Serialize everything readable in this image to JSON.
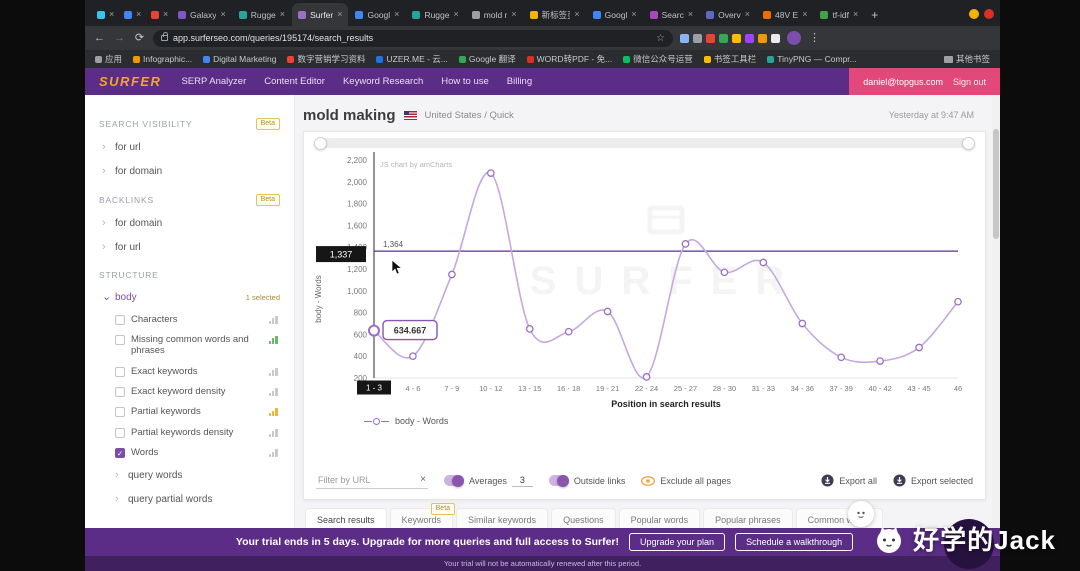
{
  "glyphs": {
    "close": "×",
    "new_tab": "+",
    "back": "←",
    "forward": "→",
    "reload": "⟳",
    "star": "☆",
    "menu": "⋮",
    "chevron_right": "›",
    "chevron_down": "⌄",
    "check": "✓",
    "clear": "×"
  },
  "browser": {
    "tabs": [
      {
        "label": "",
        "icon": "slack-icon",
        "color": "#36c5f0"
      },
      {
        "label": "",
        "icon": "workspace-icon",
        "color": "#4285f4"
      },
      {
        "label": "",
        "icon": "mail-icon",
        "color": "#ea4335"
      },
      {
        "label": "Galaxy",
        "color": "#7e57c2"
      },
      {
        "label": "Rugge",
        "color": "#26a69a"
      },
      {
        "label": "Surfer",
        "color": "#9c6fc4",
        "active": true
      },
      {
        "label": "Googl",
        "color": "#4285f4"
      },
      {
        "label": "Rugge",
        "color": "#26a69a"
      },
      {
        "label": "mold r",
        "color": "#9e9e9e"
      },
      {
        "label": "新标签页",
        "color": "#f4b400"
      },
      {
        "label": "Googl",
        "color": "#4285f4"
      },
      {
        "label": "Searc",
        "color": "#ab47bc"
      },
      {
        "label": "Overv",
        "color": "#5c6bc0"
      },
      {
        "label": "48V E",
        "color": "#ef6c00"
      },
      {
        "label": "tf-idf",
        "color": "#43a047"
      }
    ],
    "url": "app.surferseo.com/queries/195174/search_results",
    "extension_colors": [
      "#8ab4f8",
      "#9aa0a6",
      "#ea4335",
      "#34a853",
      "#fbbc04",
      "#a142f4",
      "#f29900",
      "#e8eaed"
    ],
    "window_dots": [
      "#f4b400",
      "#d93025"
    ],
    "bookmarks": [
      {
        "label": "应用",
        "color": "#9aa0a6"
      },
      {
        "label": "Infographic...",
        "color": "#f29900"
      },
      {
        "label": "Digital Marketing",
        "color": "#4285f4"
      },
      {
        "label": "数字营销学习资料",
        "color": "#ea4335"
      },
      {
        "label": "UZER.ME - 云...",
        "color": "#1a73e8"
      },
      {
        "label": "Google 翻译",
        "color": "#34a853"
      },
      {
        "label": "WORD转PDF - 免...",
        "color": "#d93025"
      },
      {
        "label": "微信公众号运营",
        "color": "#07c160"
      },
      {
        "label": "书签工具栏",
        "color": "#fbbc04"
      },
      {
        "label": "TinyPNG — Compr...",
        "color": "#26a69a"
      }
    ],
    "other_bookmarks": "其他书签"
  },
  "app_header": {
    "logo": "SURFER",
    "nav": [
      "SERP Analyzer",
      "Content Editor",
      "Keyword Research",
      "How to use",
      "Billing"
    ],
    "account_email": "daniel@topgus.com",
    "sign_out_label": "Sign out"
  },
  "sidebar": {
    "search_visibility": {
      "title": "SEARCH VISIBILITY",
      "beta": "Beta",
      "items": [
        "for url",
        "for domain"
      ]
    },
    "backlinks": {
      "title": "BACKLINKS",
      "beta": "Beta",
      "items": [
        "for domain",
        "for url"
      ]
    },
    "structure_title": "STRUCTURE",
    "body_group": {
      "label": "body",
      "selected_note": "1 selected"
    },
    "metrics": [
      {
        "label": "Characters",
        "checked": false,
        "spark": "#c9c9c9"
      },
      {
        "label": "Missing common words and phrases",
        "checked": false,
        "spark": "#66bb6a"
      },
      {
        "label": "Exact keywords",
        "checked": false,
        "spark": "#c9c9c9"
      },
      {
        "label": "Exact keyword density",
        "checked": false,
        "spark": "#c9c9c9"
      },
      {
        "label": "Partial keywords",
        "checked": false,
        "spark": "#f2b339"
      },
      {
        "label": "Partial keywords density",
        "checked": false,
        "spark": "#c9c9c9"
      },
      {
        "label": "Words",
        "checked": true,
        "spark": "#c9c9c9"
      }
    ],
    "subgroups": [
      "query words",
      "query partial words"
    ]
  },
  "main": {
    "title": "mold making",
    "scope": "United States / Quick",
    "timestamp": "Yesterday at 9:47 AM",
    "chart_credit": "JS chart by amCharts",
    "legend": "body - Words",
    "chart_watermark": "SURFER",
    "controls": {
      "filter_placeholder": "Filter by URL",
      "averages_label": "Averages",
      "averages_value": "3",
      "outside_links_label": "Outside links",
      "exclude_label": "Exclude all pages",
      "export_all_label": "Export all",
      "export_selected_label": "Export selected"
    },
    "tabs": [
      {
        "label": "Search results",
        "active": true
      },
      {
        "label": "Keywords",
        "beta": "Beta"
      },
      {
        "label": "Similar keywords"
      },
      {
        "label": "Questions"
      },
      {
        "label": "Popular words"
      },
      {
        "label": "Popular phrases"
      },
      {
        "label": "Common words"
      }
    ]
  },
  "chart_data": {
    "type": "line",
    "categories": [
      "1 - 3",
      "4 - 6",
      "7 - 9",
      "10 - 12",
      "13 - 15",
      "16 - 18",
      "19 - 21",
      "22 - 24",
      "25 - 27",
      "28 - 30",
      "31 - 33",
      "34 - 36",
      "37 - 39",
      "40 - 42",
      "43 - 45",
      "46"
    ],
    "series": [
      {
        "name": "body - Words",
        "values": [
          634.667,
          400,
          1150,
          2080,
          650,
          625,
          810,
          210,
          1430,
          1170,
          1260,
          700,
          390,
          355,
          480,
          900
        ]
      }
    ],
    "average_line": 1364,
    "cursor": {
      "category_index": 0,
      "x_badge": "1 - 3",
      "y_axis_badge": "1,337",
      "tooltip_value": "634.667",
      "average_label": "1,364"
    },
    "xlabel": "Position in search results",
    "ylabel": "body - Words",
    "ylim": [
      200,
      2200
    ],
    "ytick_step": 200,
    "grid": false,
    "legend_position": "bottom",
    "line_color": "#c5a8e0",
    "marker_color": "#9b6fc4",
    "average_color": "#5f2e8e"
  },
  "banner": {
    "message": "Your trial ends in 5 days. Upgrade for more queries and full access to Surfer!",
    "upgrade_button": "Upgrade your plan",
    "walkthrough_button": "Schedule a walkthrough",
    "note": "Your trial will not be automatically renewed after this period."
  },
  "overlay": {
    "watermark_text": "好学的Jack"
  }
}
